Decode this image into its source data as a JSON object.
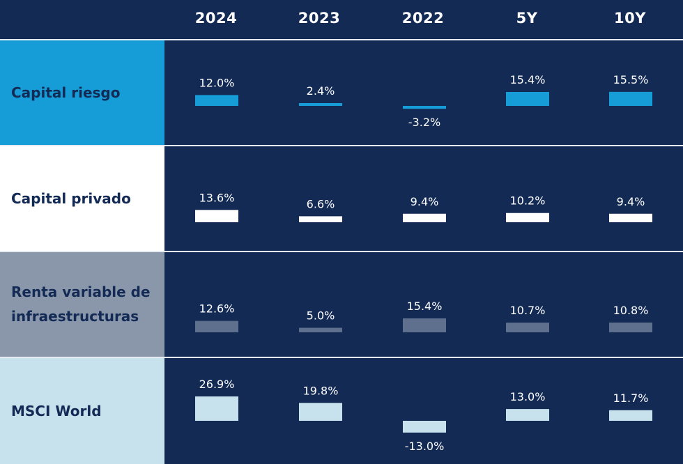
{
  "header": {
    "columns": [
      "2024",
      "2023",
      "2022",
      "5Y",
      "10Y"
    ]
  },
  "chart_data": {
    "type": "table",
    "categories": [
      "2024",
      "2023",
      "2022",
      "5Y",
      "10Y"
    ],
    "series": [
      {
        "name": "Capital riesgo",
        "values": [
          12.0,
          2.4,
          -3.2,
          15.4,
          15.5
        ],
        "labels": [
          "12.0%",
          "2.4%",
          "-3.2%",
          "15.4%",
          "15.5%"
        ],
        "label_bg": "#169dd8",
        "bar_color": "#169dd8"
      },
      {
        "name": "Capital privado",
        "values": [
          13.6,
          6.6,
          9.4,
          10.2,
          9.4
        ],
        "labels": [
          "13.6%",
          "6.6%",
          "9.4%",
          "10.2%",
          "9.4%"
        ],
        "label_bg": "#ffffff",
        "bar_color": "#ffffff"
      },
      {
        "name": "Renta variable de infraestructuras",
        "values": [
          12.6,
          5.0,
          15.4,
          10.7,
          10.8
        ],
        "labels": [
          "12.6%",
          "5.0%",
          "15.4%",
          "10.7%",
          "10.8%"
        ],
        "label_bg": "#8a97ab",
        "bar_color": "#5f6f8e"
      },
      {
        "name": "MSCI World",
        "values": [
          26.9,
          19.8,
          -13.0,
          13.0,
          11.7
        ],
        "labels": [
          "26.9%",
          "19.8%",
          "-13.0%",
          "13.0%",
          "11.7%"
        ],
        "label_bg": "#c7e2ec",
        "bar_color": "#c7e2ec"
      }
    ]
  },
  "colors": {
    "background": "#132a55",
    "divider": "#e6ebf2",
    "label_text": "#132a55",
    "value_text": "#ffffff"
  }
}
